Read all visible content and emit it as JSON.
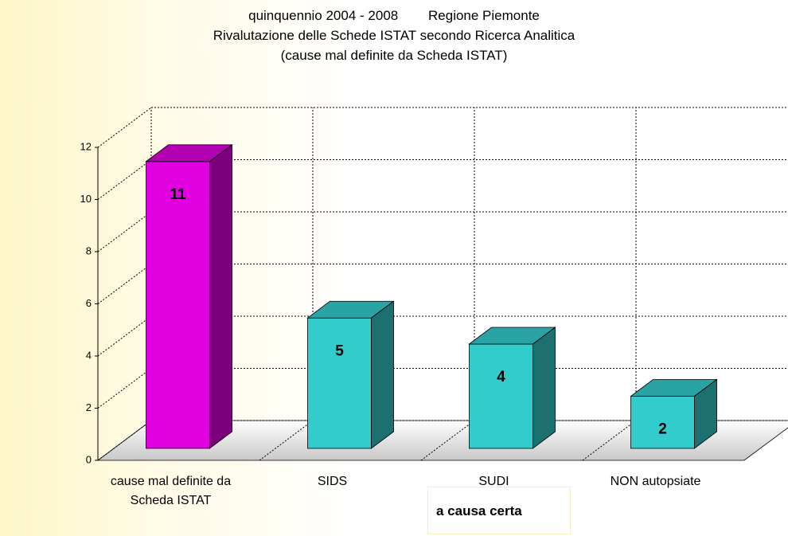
{
  "chart_data": {
    "type": "bar3d",
    "title": [
      "quinquennio 2004 - 2008        Regione Piemonte",
      "Rivalutazione delle Schede ISTAT secondo Ricerca Analitica",
      "(cause mal definite da Scheda ISTAT)"
    ],
    "categories": [
      "cause mal definite da Scheda ISTAT",
      "SIDS",
      "SUDI",
      "NON autopsiate"
    ],
    "values": [
      11,
      5,
      4,
      2
    ],
    "colors": [
      "#e000e0",
      "#33cccc",
      "#33cccc",
      "#33cccc"
    ],
    "ylim": [
      0,
      12
    ],
    "yticks": [
      0,
      2,
      4,
      6,
      8,
      10,
      12
    ],
    "grid": true,
    "annotation": "a causa certa"
  }
}
